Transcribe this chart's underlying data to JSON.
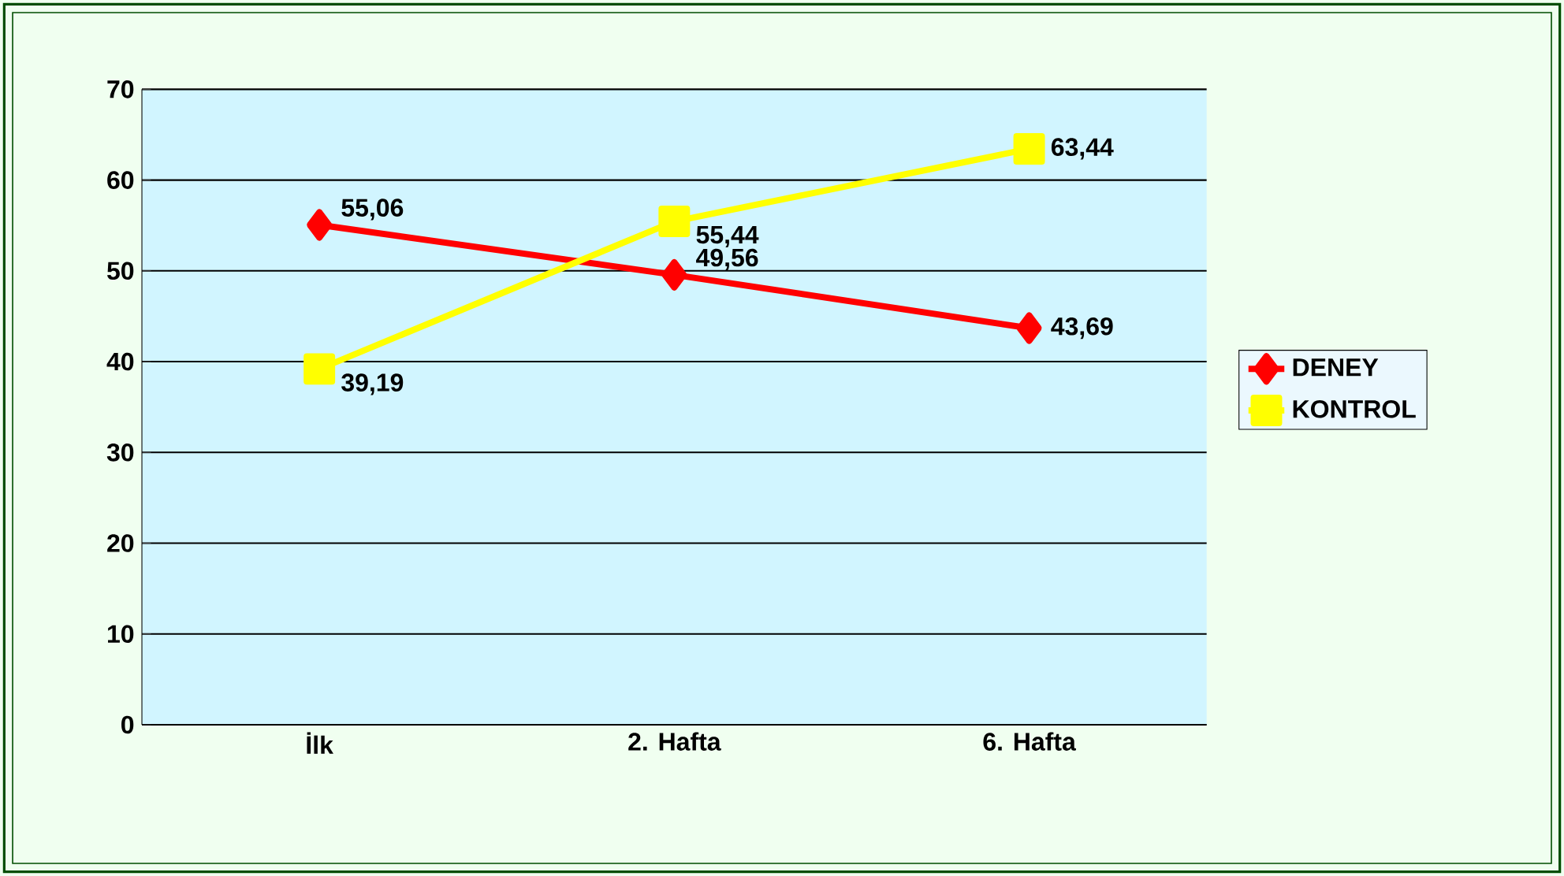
{
  "chart_data": {
    "type": "line",
    "categories": [
      "İlk",
      "2. Hafta",
      "6. Hafta"
    ],
    "series": [
      {
        "name": "DENEY",
        "color": "#ff0000",
        "marker": "diamond",
        "values": [
          55.06,
          49.56,
          43.69
        ],
        "value_labels": [
          "55,06",
          "49,56",
          "43,69"
        ]
      },
      {
        "name": "KONTROL",
        "color": "#ffff00",
        "marker": "square",
        "values": [
          39.19,
          55.44,
          63.44
        ],
        "value_labels": [
          "39,19",
          "55,44",
          "63,44"
        ]
      }
    ],
    "ylim": [
      0,
      70
    ],
    "yticks": [
      0,
      10,
      20,
      30,
      40,
      50,
      60,
      70
    ],
    "grid": "y",
    "legend": "right"
  }
}
